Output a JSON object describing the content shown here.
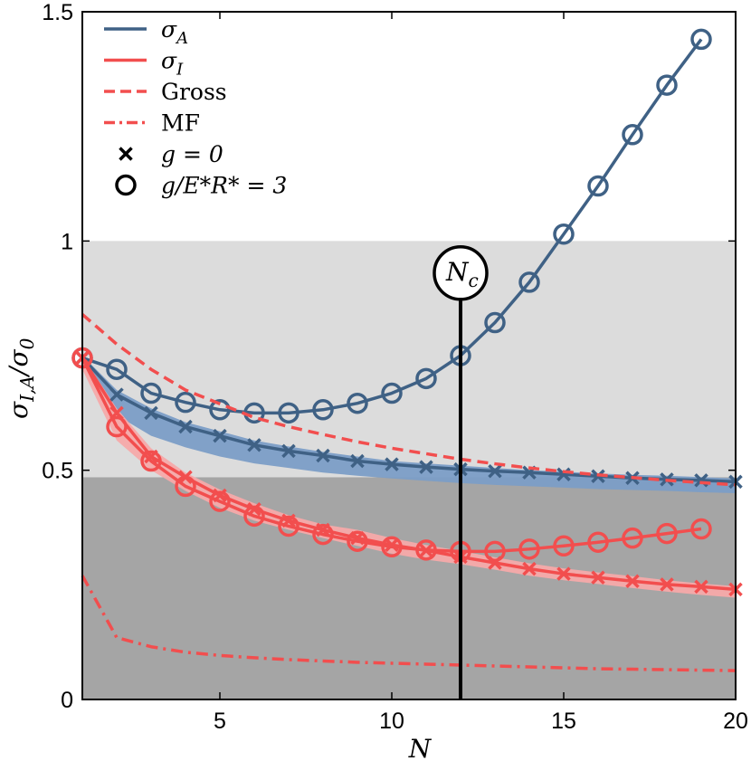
{
  "chart_data": {
    "type": "line",
    "xlabel": "N",
    "ylabel": "σ_{I,A}/σ_0",
    "xlim": [
      1,
      20
    ],
    "ylim": [
      0,
      1.5
    ],
    "xticks": [
      5,
      10,
      15,
      20
    ],
    "xtick_labels": [
      "5",
      "10",
      "15",
      "20"
    ],
    "yticks": [
      0,
      0.5,
      1,
      1.5
    ],
    "ytick_labels": [
      "0",
      "0.5",
      "1",
      "1.5"
    ],
    "grid": false,
    "legend_position": "top-left",
    "background_bands": [
      {
        "y_from": 0,
        "y_to": 0.485,
        "color": "#a5a5a5"
      },
      {
        "y_from": 0.485,
        "y_to": 1.0,
        "color": "#dcdcdc"
      }
    ],
    "annotation": {
      "label": "N_c",
      "x": 12,
      "y_top": 0.93
    },
    "bands": [
      {
        "color": "#7b9dc6",
        "x": [
          1,
          2,
          3,
          4,
          5,
          6,
          7,
          8,
          9,
          10,
          11,
          12,
          13,
          14,
          15,
          16,
          17,
          18,
          19,
          20
        ],
        "lower": [
          0.74,
          0.62,
          0.575,
          0.55,
          0.53,
          0.515,
          0.505,
          0.495,
          0.488,
          0.482,
          0.477,
          0.472,
          0.468,
          0.465,
          0.462,
          0.459,
          0.457,
          0.455,
          0.452,
          0.45
        ],
        "upper": [
          0.75,
          0.675,
          0.635,
          0.605,
          0.585,
          0.565,
          0.552,
          0.54,
          0.53,
          0.52,
          0.515,
          0.51,
          0.505,
          0.5,
          0.497,
          0.493,
          0.49,
          0.488,
          0.485,
          0.482
        ]
      },
      {
        "color": "#f6a9a9",
        "x": [
          1,
          2,
          3,
          4,
          5,
          6,
          7,
          8,
          9,
          10,
          11,
          12,
          13,
          14,
          15,
          16,
          17,
          18,
          19,
          20
        ],
        "lower": [
          0.72,
          0.565,
          0.5,
          0.455,
          0.418,
          0.39,
          0.37,
          0.352,
          0.335,
          0.318,
          0.305,
          0.295,
          0.283,
          0.27,
          0.26,
          0.252,
          0.243,
          0.235,
          0.228,
          0.222
        ],
        "upper": [
          0.75,
          0.635,
          0.548,
          0.495,
          0.458,
          0.428,
          0.402,
          0.382,
          0.37,
          0.352,
          0.337,
          0.324,
          0.31,
          0.297,
          0.286,
          0.277,
          0.269,
          0.26,
          0.253,
          0.247
        ]
      }
    ],
    "series": [
      {
        "name": "σ_A",
        "color": "#3f6185",
        "style": "solid",
        "marker": "x",
        "x": [
          1,
          2,
          3,
          4,
          5,
          6,
          7,
          8,
          9,
          10,
          11,
          12,
          13,
          14,
          15,
          16,
          17,
          18,
          19,
          20
        ],
        "y": [
          0.745,
          0.665,
          0.625,
          0.595,
          0.575,
          0.555,
          0.542,
          0.532,
          0.52,
          0.513,
          0.507,
          0.502,
          0.498,
          0.495,
          0.491,
          0.487,
          0.483,
          0.48,
          0.478,
          0.475
        ]
      },
      {
        "name": "",
        "color": "#3f6185",
        "style": "solid",
        "marker": "o",
        "x": [
          1,
          2,
          3,
          4,
          5,
          6,
          7,
          8,
          9,
          10,
          11,
          12,
          13,
          14,
          15,
          16,
          17,
          18,
          19
        ],
        "y": [
          0.745,
          0.72,
          0.668,
          0.648,
          0.632,
          0.625,
          0.625,
          0.632,
          0.646,
          0.668,
          0.7,
          0.75,
          0.822,
          0.91,
          1.015,
          1.12,
          1.232,
          1.34,
          1.44
        ]
      },
      {
        "name": "σ_I",
        "color": "#f24e4e",
        "style": "solid",
        "marker": "x",
        "x": [
          1,
          2,
          3,
          4,
          5,
          6,
          7,
          8,
          9,
          10,
          11,
          12,
          13,
          14,
          15,
          16,
          17,
          18,
          19,
          20
        ],
        "y": [
          0.745,
          0.625,
          0.53,
          0.485,
          0.445,
          0.415,
          0.39,
          0.37,
          0.352,
          0.337,
          0.325,
          0.311,
          0.298,
          0.285,
          0.274,
          0.266,
          0.258,
          0.251,
          0.246,
          0.24
        ]
      },
      {
        "name": "",
        "color": "#f24e4e",
        "style": "solid",
        "marker": "o",
        "x": [
          1,
          2,
          3,
          4,
          5,
          6,
          7,
          8,
          9,
          10,
          11,
          12,
          13,
          14,
          15,
          16,
          17,
          18,
          19
        ],
        "y": [
          0.745,
          0.595,
          0.52,
          0.465,
          0.432,
          0.4,
          0.378,
          0.36,
          0.345,
          0.333,
          0.326,
          0.323,
          0.323,
          0.328,
          0.335,
          0.343,
          0.352,
          0.362,
          0.372
        ]
      },
      {
        "name": "Gross",
        "color": "#f24e4e",
        "style": "dashed",
        "marker": "none",
        "x": [
          1,
          2,
          3,
          4,
          5,
          6,
          7,
          8,
          9,
          10,
          11,
          12,
          13,
          14,
          15,
          16,
          17,
          18,
          19,
          20
        ],
        "y": [
          0.84,
          0.775,
          0.72,
          0.675,
          0.645,
          0.615,
          0.595,
          0.578,
          0.562,
          0.548,
          0.536,
          0.524,
          0.514,
          0.505,
          0.497,
          0.49,
          0.484,
          0.478,
          0.473,
          0.468
        ]
      },
      {
        "name": "MF",
        "color": "#f24e4e",
        "style": "dashdot",
        "marker": "none",
        "x": [
          1,
          2,
          3,
          4,
          5,
          6,
          7,
          8,
          9,
          10,
          11,
          12,
          13,
          14,
          15,
          16,
          17,
          18,
          19,
          20
        ],
        "y": [
          0.27,
          0.135,
          0.115,
          0.103,
          0.096,
          0.091,
          0.087,
          0.084,
          0.081,
          0.079,
          0.077,
          0.075,
          0.073,
          0.071,
          0.069,
          0.067,
          0.066,
          0.065,
          0.064,
          0.063
        ]
      }
    ],
    "legend": [
      {
        "label": "σ_A",
        "kind": "line",
        "color": "#3f6185",
        "style": "solid"
      },
      {
        "label": "σ_I",
        "kind": "line",
        "color": "#f24e4e",
        "style": "solid"
      },
      {
        "label": "Gross",
        "kind": "line",
        "color": "#f24e4e",
        "style": "dashed"
      },
      {
        "label": "MF",
        "kind": "line",
        "color": "#f24e4e",
        "style": "dashdot"
      },
      {
        "label": "g = 0",
        "kind": "marker",
        "marker": "x",
        "color": "#000000"
      },
      {
        "label": "g/E*R* = 3",
        "kind": "marker",
        "marker": "o",
        "color": "#000000"
      }
    ]
  }
}
